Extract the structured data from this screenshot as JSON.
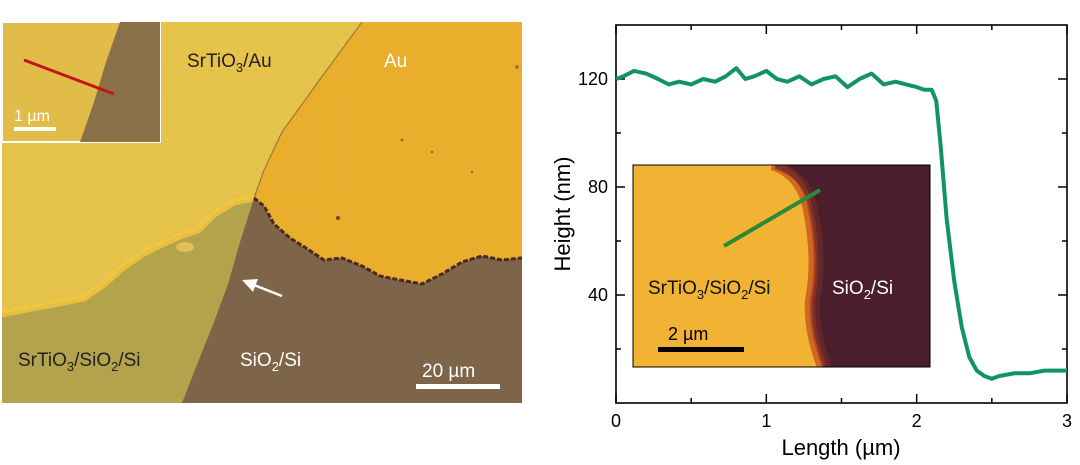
{
  "micrograph": {
    "region_labels": {
      "top_left": "SrTiO",
      "top_left_sub": "3",
      "top_left_rest": "/Au",
      "top_right": "Au",
      "bottom_left_a": "SrTiO",
      "bottom_left_sub1": "3",
      "bottom_left_b": "/SiO",
      "bottom_left_sub2": "2",
      "bottom_left_c": "/Si",
      "bottom_mid_a": "SiO",
      "bottom_mid_sub": "2",
      "bottom_mid_b": "/Si"
    },
    "scale_bar": "20 µm",
    "inset_scale_bar": "1 µm",
    "colors": {
      "gold": "#e6aa2a",
      "srtio_on_sio2": "#b4a24a",
      "sio2": "#7c6348",
      "line_marker": "#c0161a",
      "arrow": "#ffffff"
    }
  },
  "chart_data": {
    "type": "line",
    "title": "",
    "xlabel": "Length (µm)",
    "ylabel": "Height (nm)",
    "xlim": [
      0,
      3
    ],
    "ylim": [
      0,
      140
    ],
    "xticks": [
      0,
      1,
      2,
      3
    ],
    "yticks": [
      40,
      80,
      120
    ],
    "grid": false,
    "line_color": "#129462",
    "x": [
      0,
      0.05,
      0.12,
      0.2,
      0.28,
      0.35,
      0.42,
      0.5,
      0.58,
      0.66,
      0.73,
      0.8,
      0.86,
      0.92,
      1.0,
      1.07,
      1.14,
      1.22,
      1.3,
      1.38,
      1.46,
      1.54,
      1.62,
      1.7,
      1.78,
      1.86,
      1.93,
      2.0,
      2.05,
      2.1,
      2.13,
      2.16,
      2.2,
      2.25,
      2.3,
      2.35,
      2.4,
      2.45,
      2.5,
      2.55,
      2.65,
      2.75,
      2.85,
      2.95,
      3.0
    ],
    "y": [
      120,
      121,
      123,
      122,
      120,
      118,
      119,
      118,
      120,
      119,
      121,
      124,
      120,
      121,
      123,
      120,
      119,
      121,
      118,
      120,
      121,
      117,
      120,
      122,
      118,
      119,
      118,
      117,
      116,
      116,
      112,
      95,
      68,
      45,
      28,
      17,
      12,
      10,
      9,
      10,
      11,
      11,
      12,
      12,
      12
    ],
    "inset": {
      "label_left_a": "SrTiO",
      "label_left_sub1": "3",
      "label_left_b": "/SiO",
      "label_left_sub2": "2",
      "label_left_c": "/Si",
      "label_right_a": "SiO",
      "label_right_sub": "2",
      "label_right_b": "/Si",
      "scale_bar": "2 µm",
      "colors": {
        "bright": "#f3b433",
        "dark": "#4a1e2c",
        "edge": "#c04a20",
        "line": "#2a8a3a"
      }
    }
  }
}
